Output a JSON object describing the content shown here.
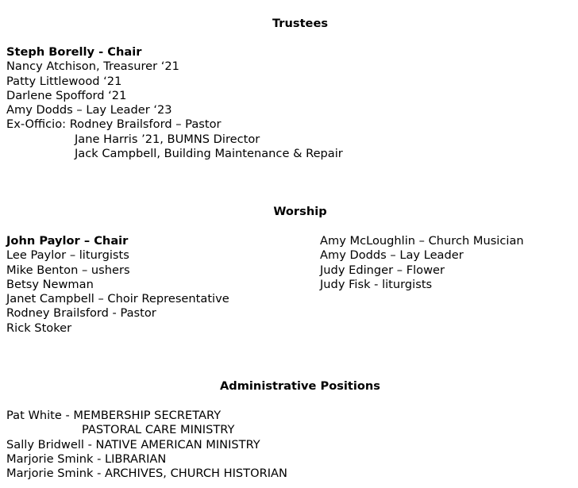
{
  "trustees": {
    "heading": "Trustees",
    "chair": "Steph Borelly - Chair",
    "members": [
      "Nancy Atchison, Treasurer ‘21",
      "Patty Littlewood ‘21",
      "Darlene Spofford ‘21",
      "Amy Dodds – Lay Leader ‘23",
      "Ex-Officio: Rodney Brailsford – Pastor"
    ],
    "ex_officio_continued": [
      "Jane Harris ’21, BUMNS Director",
      "Jack Campbell, Building Maintenance & Repair"
    ]
  },
  "worship": {
    "heading": "Worship",
    "chair": "John Paylor – Chair",
    "left_members": [
      "Lee Paylor – liturgists",
      "Mike Benton – ushers",
      "Betsy Newman",
      "Janet Campbell – Choir Representative",
      "Rodney Brailsford - Pastor",
      "Rick Stoker"
    ],
    "right_members": [
      "Amy McLoughlin – Church Musician",
      "Amy Dodds – Lay Leader",
      "Judy Edinger – Flower",
      "Judy Fisk - liturgists"
    ]
  },
  "admin": {
    "heading": "Administrative Positions",
    "line1": "Pat White - MEMBERSHIP SECRETARY",
    "line1_cont": "PASTORAL CARE MINISTRY",
    "others": [
      "Sally Bridwell - NATIVE AMERICAN MINISTRY",
      "Marjorie Smink - LIBRARIAN",
      "Marjorie Smink - ARCHIVES, CHURCH HISTORIAN"
    ]
  }
}
